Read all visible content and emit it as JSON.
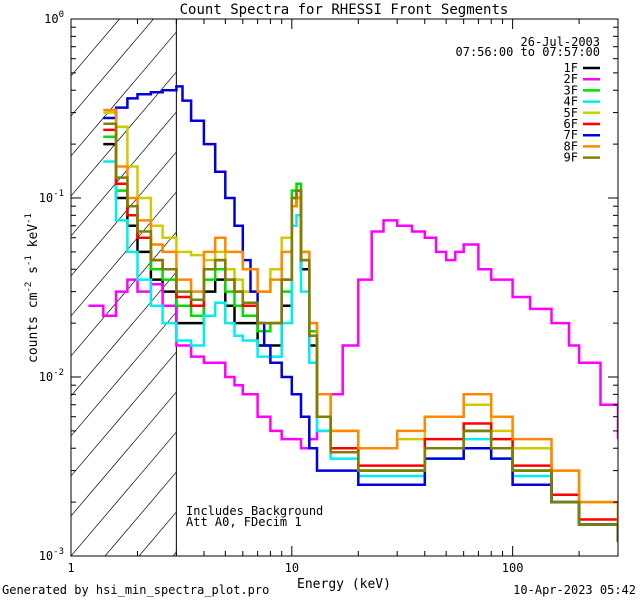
{
  "chart_data": {
    "type": "line",
    "title": "Count Spectra for RHESSI Front Segments",
    "xlabel": "Energy (keV)",
    "ylabel": "counts cm",
    "ylabel_exp1": "-2",
    "ylabel_mid": " s",
    "ylabel_exp2": "-1",
    "ylabel_end": " keV",
    "ylabel_exp3": "-1",
    "x_scale": "log",
    "y_scale": "log",
    "xlim": [
      1.0,
      300.0
    ],
    "ylim": [
      0.001,
      1.0
    ],
    "x_ticks": [
      {
        "value": 1,
        "label": "1"
      },
      {
        "value": 10,
        "label": "10"
      },
      {
        "value": 100,
        "label": "100"
      }
    ],
    "y_ticks": [
      {
        "value": 0.001,
        "base": "10",
        "exp": "-3"
      },
      {
        "value": 0.01,
        "base": "10",
        "exp": "-2"
      },
      {
        "value": 0.1,
        "base": "10",
        "exp": "-1"
      },
      {
        "value": 1,
        "base": "10",
        "exp": "0"
      }
    ],
    "attenuator_cutoff_kev": 3.0,
    "hatched_region_kev": [
      1.0,
      3.0
    ],
    "date": "26-Jul-2003",
    "time_range": "07:56:00 to 07:57:00",
    "annotations": [
      "Includes Background",
      "Att A0, FDecim 1"
    ],
    "legend_position": "top-right",
    "series": [
      {
        "name": "1F",
        "color": "#000000",
        "x": [
          1.4,
          1.6,
          1.8,
          2.0,
          2.3,
          2.6,
          3.0,
          3.5,
          4.0,
          4.5,
          5.0,
          5.5,
          6.0,
          7.0,
          8.0,
          9.0,
          10.0,
          10.5,
          11.0,
          12.0,
          13.0,
          15.0,
          20.0,
          30.0,
          40.0,
          60.0,
          80.0,
          100.0,
          150.0,
          200.0,
          300.0
        ],
        "y": [
          0.2,
          0.1,
          0.07,
          0.05,
          0.035,
          0.03,
          0.02,
          0.02,
          0.03,
          0.035,
          0.025,
          0.02,
          0.02,
          0.015,
          0.015,
          0.025,
          0.09,
          0.1,
          0.04,
          0.015,
          0.006,
          0.004,
          0.003,
          0.003,
          0.004,
          0.005,
          0.004,
          0.003,
          0.002,
          0.0015,
          0.0012
        ]
      },
      {
        "name": "2F",
        "color": "#ff00ff",
        "x": [
          1.2,
          1.4,
          1.6,
          1.8,
          2.0,
          2.3,
          2.6,
          3.0,
          3.5,
          4.0,
          4.5,
          5.0,
          5.5,
          6.0,
          7.0,
          8.0,
          9.0,
          10.0,
          11.0,
          12.0,
          13.0,
          15.0,
          17.0,
          20.0,
          23.0,
          26.0,
          30.0,
          35.0,
          40.0,
          45.0,
          50.0,
          55.0,
          60.0,
          70.0,
          80.0,
          100.0,
          120.0,
          150.0,
          180.0,
          200.0,
          250.0,
          300.0
        ],
        "y": [
          0.025,
          0.022,
          0.03,
          0.035,
          0.03,
          0.033,
          0.025,
          0.015,
          0.013,
          0.012,
          0.012,
          0.01,
          0.009,
          0.008,
          0.006,
          0.005,
          0.0045,
          0.0045,
          0.004,
          0.0045,
          0.005,
          0.008,
          0.015,
          0.035,
          0.065,
          0.075,
          0.07,
          0.065,
          0.06,
          0.05,
          0.045,
          0.05,
          0.055,
          0.04,
          0.035,
          0.028,
          0.024,
          0.02,
          0.015,
          0.012,
          0.007,
          0.0045
        ]
      },
      {
        "name": "3F",
        "color": "#00dd00",
        "x": [
          1.4,
          1.6,
          1.8,
          2.0,
          2.3,
          2.6,
          3.0,
          3.5,
          4.0,
          4.5,
          5.0,
          5.5,
          6.0,
          7.0,
          8.0,
          9.0,
          10.0,
          10.5,
          11.0,
          12.0,
          13.0,
          15.0,
          20.0,
          30.0,
          40.0,
          60.0,
          80.0,
          100.0,
          150.0,
          200.0,
          300.0
        ],
        "y": [
          0.22,
          0.11,
          0.08,
          0.06,
          0.04,
          0.035,
          0.025,
          0.022,
          0.035,
          0.04,
          0.03,
          0.025,
          0.022,
          0.018,
          0.02,
          0.03,
          0.11,
          0.12,
          0.05,
          0.018,
          0.006,
          0.004,
          0.003,
          0.003,
          0.004,
          0.005,
          0.004,
          0.003,
          0.002,
          0.0015,
          0.0012
        ]
      },
      {
        "name": "4F",
        "color": "#00eeee",
        "x": [
          1.4,
          1.6,
          1.8,
          2.0,
          2.3,
          2.6,
          3.0,
          3.5,
          4.0,
          4.5,
          5.0,
          5.5,
          6.0,
          7.0,
          8.0,
          9.0,
          10.0,
          10.5,
          11.0,
          12.0,
          13.0,
          15.0,
          20.0,
          30.0,
          40.0,
          60.0,
          80.0,
          100.0,
          150.0,
          200.0,
          300.0
        ],
        "y": [
          0.16,
          0.075,
          0.05,
          0.035,
          0.025,
          0.02,
          0.016,
          0.015,
          0.022,
          0.026,
          0.02,
          0.017,
          0.016,
          0.013,
          0.013,
          0.02,
          0.07,
          0.08,
          0.03,
          0.012,
          0.005,
          0.0035,
          0.0028,
          0.0028,
          0.0035,
          0.0045,
          0.0035,
          0.0028,
          0.002,
          0.0015,
          0.0012
        ]
      },
      {
        "name": "5F",
        "color": "#cccc00",
        "x": [
          1.4,
          1.6,
          1.8,
          2.0,
          2.3,
          2.6,
          3.0,
          3.5,
          4.0,
          4.5,
          5.0,
          5.5,
          6.0,
          7.0,
          8.0,
          9.0,
          10.0,
          10.5,
          11.0,
          12.0,
          13.0,
          15.0,
          20.0,
          30.0,
          40.0,
          60.0,
          80.0,
          100.0,
          150.0,
          200.0,
          300.0
        ],
        "y": [
          0.3,
          0.25,
          0.15,
          0.1,
          0.07,
          0.06,
          0.05,
          0.048,
          0.045,
          0.05,
          0.04,
          0.035,
          0.03,
          0.03,
          0.04,
          0.06,
          0.09,
          0.1,
          0.05,
          0.02,
          0.008,
          0.005,
          0.004,
          0.0045,
          0.006,
          0.007,
          0.005,
          0.004,
          0.003,
          0.002,
          0.0015
        ]
      },
      {
        "name": "6F",
        "color": "#ff0000",
        "x": [
          1.4,
          1.6,
          1.8,
          2.0,
          2.3,
          2.6,
          3.0,
          3.5,
          4.0,
          4.5,
          5.0,
          5.5,
          6.0,
          7.0,
          8.0,
          9.0,
          10.0,
          10.5,
          11.0,
          12.0,
          13.0,
          15.0,
          20.0,
          30.0,
          40.0,
          60.0,
          80.0,
          100.0,
          150.0,
          200.0,
          300.0
        ],
        "y": [
          0.24,
          0.12,
          0.08,
          0.06,
          0.045,
          0.04,
          0.028,
          0.025,
          0.04,
          0.045,
          0.035,
          0.03,
          0.025,
          0.02,
          0.02,
          0.035,
          0.1,
          0.11,
          0.045,
          0.017,
          0.006,
          0.004,
          0.0032,
          0.0032,
          0.0045,
          0.0055,
          0.0045,
          0.0032,
          0.0022,
          0.0016,
          0.0012
        ]
      },
      {
        "name": "7F",
        "color": "#0000dd",
        "x": [
          1.4,
          1.6,
          1.8,
          2.0,
          2.3,
          2.6,
          3.0,
          3.2,
          3.5,
          4.0,
          4.5,
          5.0,
          5.5,
          6.0,
          6.5,
          7.0,
          7.5,
          8.0,
          9.0,
          10.0,
          11.0,
          12.0,
          13.0,
          15.0,
          20.0,
          30.0,
          40.0,
          60.0,
          80.0,
          100.0,
          150.0,
          200.0,
          300.0
        ],
        "y": [
          0.28,
          0.32,
          0.36,
          0.38,
          0.39,
          0.4,
          0.42,
          0.35,
          0.27,
          0.2,
          0.14,
          0.1,
          0.07,
          0.045,
          0.03,
          0.02,
          0.015,
          0.012,
          0.01,
          0.008,
          0.006,
          0.004,
          0.003,
          0.003,
          0.0025,
          0.0025,
          0.0035,
          0.004,
          0.0035,
          0.0025,
          0.002,
          0.0015,
          0.0012
        ]
      },
      {
        "name": "8F",
        "color": "#ff8800",
        "x": [
          1.4,
          1.6,
          1.8,
          2.0,
          2.3,
          2.6,
          3.0,
          3.5,
          4.0,
          4.5,
          5.0,
          5.5,
          6.0,
          7.0,
          8.0,
          9.0,
          10.0,
          10.5,
          11.0,
          12.0,
          13.0,
          15.0,
          20.0,
          30.0,
          40.0,
          60.0,
          80.0,
          100.0,
          150.0,
          200.0,
          300.0
        ],
        "y": [
          0.31,
          0.15,
          0.1,
          0.075,
          0.055,
          0.05,
          0.035,
          0.03,
          0.05,
          0.06,
          0.05,
          0.05,
          0.04,
          0.03,
          0.035,
          0.05,
          0.09,
          0.1,
          0.05,
          0.02,
          0.008,
          0.005,
          0.004,
          0.005,
          0.006,
          0.008,
          0.006,
          0.0045,
          0.003,
          0.002,
          0.0015
        ]
      },
      {
        "name": "9F",
        "color": "#808000",
        "x": [
          1.4,
          1.6,
          1.8,
          2.0,
          2.3,
          2.6,
          3.0,
          3.5,
          4.0,
          4.5,
          5.0,
          5.5,
          6.0,
          7.0,
          8.0,
          9.0,
          10.0,
          10.5,
          11.0,
          12.0,
          13.0,
          15.0,
          20.0,
          30.0,
          40.0,
          60.0,
          80.0,
          100.0,
          150.0,
          200.0,
          300.0
        ],
        "y": [
          0.26,
          0.13,
          0.09,
          0.065,
          0.045,
          0.04,
          0.03,
          0.027,
          0.04,
          0.045,
          0.035,
          0.03,
          0.026,
          0.02,
          0.02,
          0.035,
          0.1,
          0.11,
          0.045,
          0.017,
          0.006,
          0.0038,
          0.003,
          0.003,
          0.004,
          0.005,
          0.004,
          0.003,
          0.002,
          0.0015,
          0.0012
        ]
      }
    ]
  },
  "footer": {
    "generated_by": "Generated by hsi_min_spectra_plot.pro",
    "timestamp": "10-Apr-2023 05:42"
  }
}
